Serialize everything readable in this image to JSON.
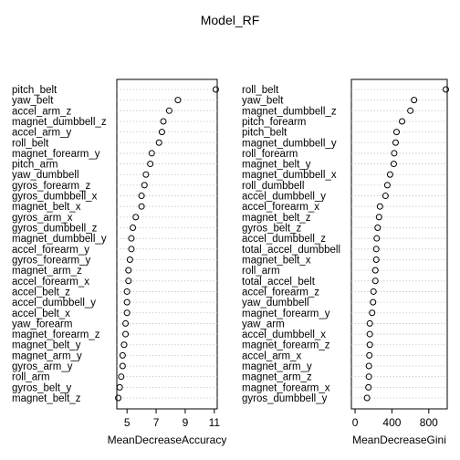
{
  "title": "Model_RF",
  "chart_data": [
    {
      "type": "scatter",
      "subtype": "dotchart",
      "xlabel": "MeanDecreaseAccuracy",
      "xlim": [
        4.3,
        11.2
      ],
      "xticks": [
        5,
        7,
        9,
        11
      ],
      "xtick_labels": [
        "5",
        "7",
        "9",
        "11"
      ],
      "grid": "dotted horizontal",
      "categories": [
        "pitch_belt",
        "yaw_belt",
        "accel_arm_z",
        "magnet_dumbbell_z",
        "accel_arm_y",
        "roll_belt",
        "magnet_forearm_y",
        "pitch_arm",
        "yaw_dumbbell",
        "gyros_forearm_z",
        "gyros_dumbbell_x",
        "magnet_belt_x",
        "gyros_arm_x",
        "gyros_dumbbell_z",
        "magnet_dumbbell_y",
        "accel_forearm_y",
        "gyros_forearm_y",
        "magnet_arm_z",
        "accel_forearm_x",
        "accel_belt_z",
        "accel_dumbbell_y",
        "accel_belt_x",
        "yaw_forearm",
        "magnet_forearm_z",
        "magnet_belt_y",
        "magnet_arm_y",
        "gyros_arm_y",
        "roll_arm",
        "gyros_belt_y",
        "magnet_belt_z"
      ],
      "values": [
        11.1,
        8.5,
        7.9,
        7.5,
        7.4,
        7.2,
        6.7,
        6.6,
        6.3,
        6.2,
        6.0,
        6.0,
        5.6,
        5.4,
        5.3,
        5.3,
        5.2,
        5.1,
        5.1,
        5.0,
        5.0,
        5.0,
        4.9,
        4.9,
        4.8,
        4.7,
        4.7,
        4.6,
        4.5,
        4.4
      ]
    },
    {
      "type": "scatter",
      "subtype": "dotchart",
      "xlabel": "MeanDecreaseGini",
      "xlim": [
        -40,
        1000
      ],
      "xticks": [
        0,
        400,
        800
      ],
      "xtick_labels": [
        "0",
        "400",
        "800"
      ],
      "grid": "dotted horizontal",
      "categories": [
        "roll_belt",
        "yaw_belt",
        "magnet_dumbbell_z",
        "pitch_forearm",
        "pitch_belt",
        "magnet_dumbbell_y",
        "roll_forearm",
        "magnet_belt_y",
        "magnet_dumbbell_x",
        "roll_dumbbell",
        "accel_dumbbell_y",
        "accel_forearm_x",
        "magnet_belt_z",
        "gyros_belt_z",
        "accel_dumbbell_z",
        "total_accel_dumbbell",
        "magnet_belt_x",
        "roll_arm",
        "total_accel_belt",
        "accel_forearm_z",
        "yaw_dumbbell",
        "magnet_forearm_y",
        "yaw_arm",
        "accel_dumbbell_x",
        "magnet_forearm_z",
        "accel_arm_x",
        "magnet_arm_y",
        "magnet_arm_z",
        "magnet_forearm_x",
        "gyros_dumbbell_y"
      ],
      "values": [
        985,
        640,
        600,
        510,
        450,
        440,
        425,
        420,
        380,
        350,
        330,
        270,
        260,
        245,
        235,
        230,
        230,
        220,
        220,
        200,
        195,
        185,
        160,
        160,
        160,
        155,
        150,
        150,
        145,
        130
      ]
    }
  ]
}
